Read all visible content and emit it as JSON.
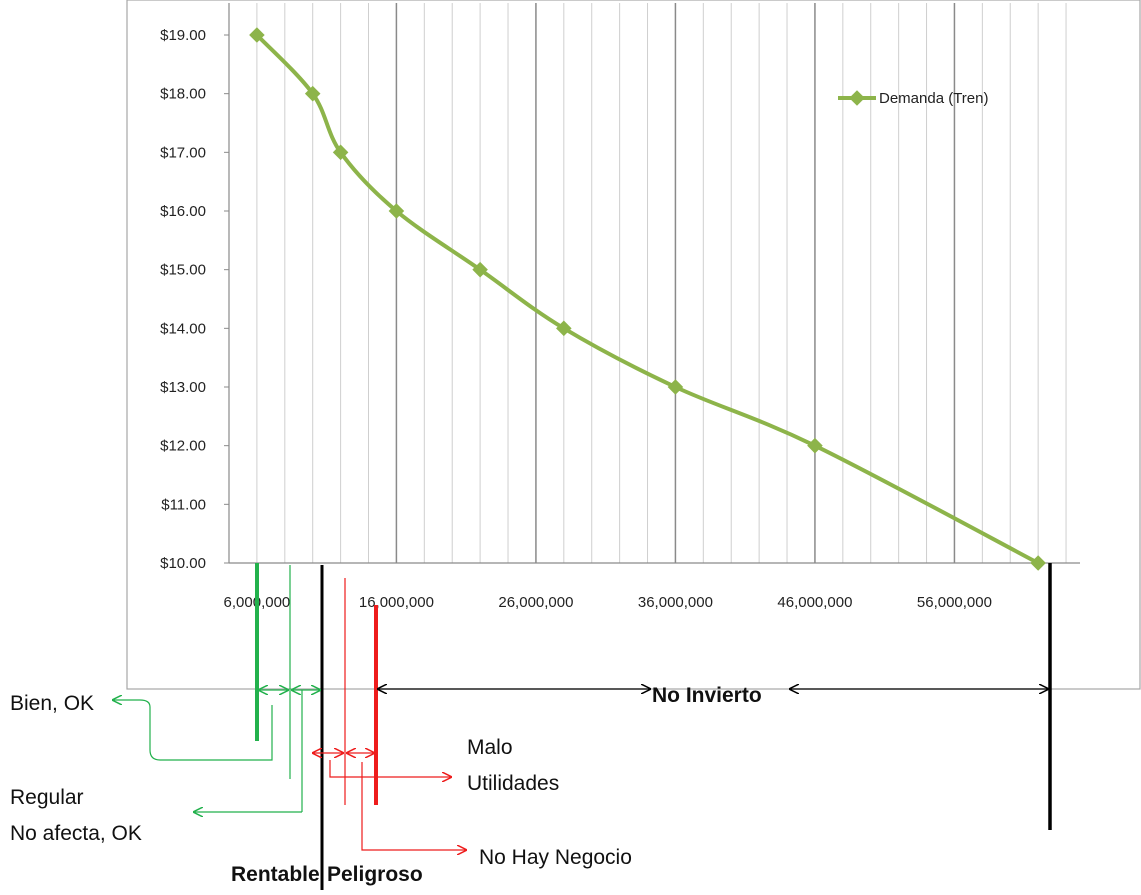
{
  "chart_data": {
    "type": "line",
    "series": [
      {
        "name": "Demanda (Tren)",
        "color": "#8db44a",
        "x": [
          6000000,
          10000000,
          12000000,
          16000000,
          22000000,
          28000000,
          36000000,
          46000000,
          62000000
        ],
        "y": [
          19,
          18,
          17,
          16,
          15,
          14,
          13,
          12,
          10
        ]
      }
    ],
    "y_tick_labels": [
      "$10.00",
      "$11.00",
      "$12.00",
      "$13.00",
      "$14.00",
      "$15.00",
      "$16.00",
      "$17.00",
      "$18.00",
      "$19.00"
    ],
    "x_tick_labels": [
      "6,000,000",
      "16,000,000",
      "26,000,000",
      "36,000,000",
      "46,000,000",
      "56,000,000"
    ],
    "x_ticks": [
      6000000,
      16000000,
      26000000,
      36000000,
      46000000,
      56000000
    ],
    "xlim": [
      4000000,
      65000000
    ],
    "ylim": [
      10,
      19
    ],
    "grid_x": true,
    "legend_position": "top-right",
    "markers": {
      "bien_ok": 8000000,
      "regular": 10500000,
      "rentable": 12500000,
      "malo": 14000000,
      "peligroso": 16000000,
      "no_invierto_end": 62000000
    },
    "annotations": {
      "no_invierto": "No Invierto",
      "bien_ok": "Bien, OK",
      "regular": "Regular",
      "no_afecta": "No afecta, OK",
      "malo": "Malo",
      "utilidades": "Utilidades",
      "no_hay_negocio": "No Hay Negocio",
      "rentable": "Rentable",
      "peligroso": "Peligroso"
    },
    "annotation_colors": {
      "green": "#22b14c",
      "red": "#ee1c1c",
      "black": "#000000"
    }
  }
}
